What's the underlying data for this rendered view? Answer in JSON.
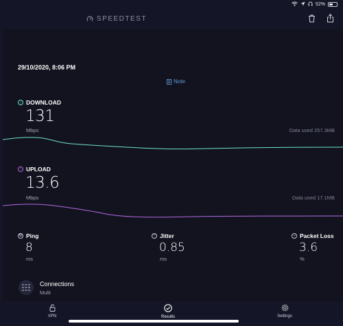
{
  "status_bar": {
    "battery": "52%",
    "battery_level": 0.52
  },
  "app": {
    "brand": "SPEEDTEST"
  },
  "result": {
    "timestamp": "29/10/2020, 8:06 PM",
    "note_label": "Note",
    "download": {
      "label": "DOWNLOAD",
      "value": "131",
      "unit": "Mbps",
      "data_used": "Data used 257.3MB",
      "color": "#6fe3c9"
    },
    "upload": {
      "label": "UPLOAD",
      "value": "13.6",
      "unit": "Mbps",
      "data_used": "Data used 17.1MB",
      "color": "#b46be3"
    },
    "ping": {
      "label": "Ping",
      "value": "8",
      "unit": "ms"
    },
    "jitter": {
      "label": "Jitter",
      "value": "0.85",
      "unit": "ms"
    },
    "packet_loss": {
      "label": "Packet Loss",
      "value": "3.6",
      "unit": "%"
    },
    "connections": {
      "label": "Connections",
      "value": "Multi"
    }
  },
  "tabs": [
    {
      "label": "VPN",
      "icon": "lock-icon"
    },
    {
      "label": "Results",
      "icon": "check-circle-icon",
      "active": true
    },
    {
      "label": "Settings",
      "icon": "gear-icon"
    }
  ],
  "colors": {
    "background": "#141526",
    "accent_link": "#5f9cd3"
  }
}
